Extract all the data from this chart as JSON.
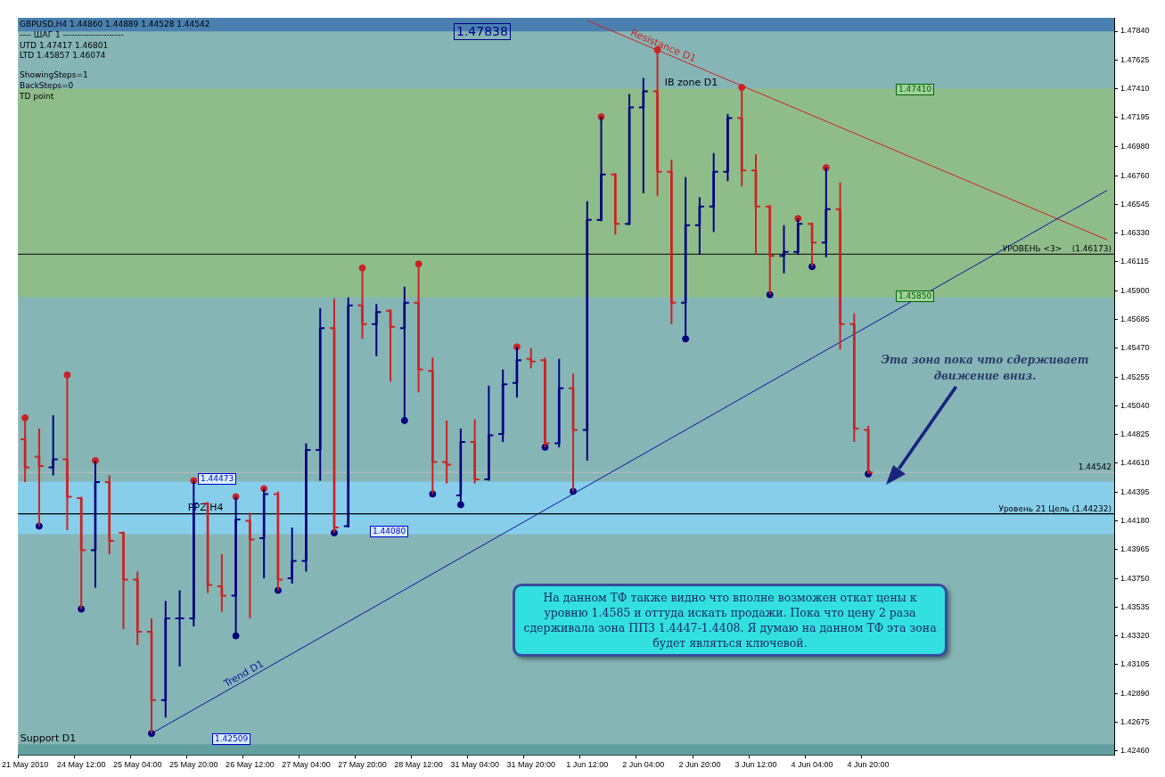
{
  "chart_data": {
    "type": "candlestick",
    "title": "GBPUSD,H4  1.44860 1.44889 1.44528 1.44542",
    "categories": [
      "21 May 2010",
      null,
      null,
      null,
      "24 May 12:00",
      null,
      null,
      null,
      "25 May 04:00",
      null,
      null,
      null,
      "25 May 20:00",
      null,
      null,
      null,
      "26 May 12:00",
      null,
      null,
      null,
      "27 May 04:00",
      null,
      null,
      null,
      "27 May 20:00",
      null,
      null,
      null,
      "28 May 12:00",
      null,
      null,
      null,
      "31 May 04:00",
      null,
      null,
      null,
      "31 May 20:00",
      null,
      null,
      null,
      "1 Jun 12:00",
      null,
      null,
      null,
      "2 Jun 04:00",
      null,
      null,
      null,
      "2 Jun 20:00",
      null,
      null,
      null,
      "3 Jun 12:00",
      null,
      null,
      null,
      "4 Jun 04:00",
      null,
      null,
      null,
      "4 Jun 20:00",
      null,
      null,
      null,
      null,
      null,
      null,
      null,
      null,
      null,
      null,
      null,
      null,
      null,
      null,
      null,
      null,
      null
    ],
    "ohlc": [
      [
        1.4479,
        1.4495,
        1.4447,
        1.4458
      ],
      [
        1.4466,
        1.4487,
        1.4414,
        1.4459
      ],
      [
        1.4458,
        1.4497,
        1.4452,
        1.4464
      ],
      [
        1.4464,
        1.4527,
        1.4411,
        1.4436
      ],
      [
        1.4435,
        1.4436,
        1.4352,
        1.4396
      ],
      [
        1.4396,
        1.4463,
        1.4368,
        1.4447
      ],
      [
        1.4447,
        1.4452,
        1.4393,
        1.4403
      ],
      [
        1.4409,
        1.441,
        1.4337,
        1.4374
      ],
      [
        1.4374,
        1.438,
        1.4325,
        1.4335
      ],
      [
        1.4335,
        1.4345,
        1.4259,
        1.4284
      ],
      [
        1.4284,
        1.4358,
        1.4271,
        1.4345
      ],
      [
        1.4345,
        1.4366,
        1.4309,
        1.4345
      ],
      [
        1.4345,
        1.4448,
        1.4339,
        1.4431
      ],
      [
        1.4431,
        1.4432,
        1.4364,
        1.437
      ],
      [
        1.4369,
        1.4393,
        1.435,
        1.4362
      ],
      [
        1.4362,
        1.4436,
        1.4332,
        1.4419
      ],
      [
        1.4418,
        1.4424,
        1.4345,
        1.4404
      ],
      [
        1.4405,
        1.4442,
        1.4375,
        1.4438
      ],
      [
        1.4438,
        1.444,
        1.4366,
        1.4374
      ],
      [
        1.4375,
        1.4413,
        1.4371,
        1.4388
      ],
      [
        1.4388,
        1.4476,
        1.438,
        1.4471
      ],
      [
        1.4471,
        1.4577,
        1.4448,
        1.4562
      ],
      [
        1.4562,
        1.4584,
        1.4409,
        1.4413
      ],
      [
        1.4414,
        1.4585,
        1.4413,
        1.4579
      ],
      [
        1.4579,
        1.4607,
        1.4554,
        1.4565
      ],
      [
        1.4565,
        1.458,
        1.4541,
        1.4574
      ],
      [
        1.4575,
        1.4576,
        1.4522,
        1.4563
      ],
      [
        1.4562,
        1.4593,
        1.4493,
        1.4581
      ],
      [
        1.4581,
        1.461,
        1.4514,
        1.4531
      ],
      [
        1.453,
        1.454,
        1.4438,
        1.4462
      ],
      [
        1.4462,
        1.4493,
        1.4446,
        1.446
      ],
      [
        1.4437,
        1.4487,
        1.443,
        1.4477
      ],
      [
        1.4477,
        1.4494,
        1.4446,
        1.4449
      ],
      [
        1.4449,
        1.4519,
        1.4448,
        1.4482
      ],
      [
        1.4483,
        1.4531,
        1.4477,
        1.452
      ],
      [
        1.4521,
        1.4548,
        1.451,
        1.4538
      ],
      [
        1.4539,
        1.4547,
        1.4532,
        1.4537
      ],
      [
        1.4538,
        1.454,
        1.4473,
        1.4476
      ],
      [
        1.4476,
        1.4539,
        1.4473,
        1.4517
      ],
      [
        1.4517,
        1.4528,
        1.444,
        1.4486
      ],
      [
        1.4486,
        1.4657,
        1.4463,
        1.4643
      ],
      [
        1.4643,
        1.472,
        1.4642,
        1.4677
      ],
      [
        1.4677,
        1.4678,
        1.4632,
        1.464
      ],
      [
        1.464,
        1.4737,
        1.4639,
        1.4727
      ],
      [
        1.4727,
        1.4749,
        1.4663,
        1.4739
      ],
      [
        1.4739,
        1.477,
        1.4661,
        1.4679
      ],
      [
        1.4679,
        1.4688,
        1.4565,
        1.4581
      ],
      [
        1.4581,
        1.4675,
        1.4554,
        1.4639
      ],
      [
        1.4639,
        1.466,
        1.4617,
        1.4653
      ],
      [
        1.4653,
        1.4693,
        1.4634,
        1.4679
      ],
      [
        1.4679,
        1.4722,
        1.4672,
        1.4719
      ],
      [
        1.4719,
        1.4742,
        1.4668,
        1.468
      ],
      [
        1.468,
        1.4692,
        1.4617,
        1.4653
      ],
      [
        1.4653,
        1.4654,
        1.4587,
        1.4616
      ],
      [
        1.4616,
        1.4639,
        1.4603,
        1.4619
      ],
      [
        1.4619,
        1.4644,
        1.4617,
        1.464
      ],
      [
        1.464,
        1.4641,
        1.4608,
        1.4626
      ],
      [
        1.4626,
        1.4682,
        1.4615,
        1.4651
      ],
      [
        1.4651,
        1.4671,
        1.4546,
        1.4565
      ],
      [
        1.4565,
        1.4573,
        1.4477,
        1.4487
      ],
      [
        1.4486,
        1.4489,
        1.4453,
        1.4454
      ],
      null,
      null,
      null,
      null,
      null,
      null,
      null,
      null,
      null,
      null,
      null,
      null,
      null,
      null,
      null,
      null,
      null
    ],
    "colors": [
      "#cc2222",
      "#cc2222",
      "#000080",
      "#cc2222",
      "#cc2222",
      "#000080",
      "#cc2222",
      "#cc2222",
      "#cc2222",
      "#cc2222",
      "#000080",
      "#000080",
      "#000080",
      "#cc2222",
      "#cc2222",
      "#000080",
      "#cc2222",
      "#000080",
      "#cc2222",
      "#000080",
      "#000080",
      "#000080",
      "#cc2222",
      "#000080",
      "#cc2222",
      "#000080",
      "#cc2222",
      "#000080",
      "#cc2222",
      "#cc2222",
      "#cc2222",
      "#000080",
      "#cc2222",
      "#000080",
      "#000080",
      "#000080",
      "#cc2222",
      "#cc2222",
      "#000080",
      "#cc2222",
      "#000080",
      "#000080",
      "#cc2222",
      "#000080",
      "#000080",
      "#cc2222",
      "#cc2222",
      "#000080",
      "#000080",
      "#000080",
      "#000080",
      "#cc2222",
      "#cc2222",
      "#cc2222",
      "#000080",
      "#000080",
      "#cc2222",
      "#000080",
      "#cc2222",
      "#cc2222",
      "#cc2222",
      null,
      null,
      null,
      null,
      null,
      null,
      null,
      null,
      null,
      null,
      null,
      null,
      null,
      null,
      null,
      null,
      null
    ],
    "series": [
      {
        "type": "line",
        "name": "Trend D1",
        "color": "#1010a0",
        "values": [
          null,
          null,
          null,
          null,
          null,
          null,
          null,
          null,
          null,
          1.4259,
          null,
          null,
          null,
          null,
          null,
          null,
          null,
          null,
          null,
          null,
          null,
          null,
          null,
          null,
          null,
          null,
          null,
          null,
          null,
          null,
          null,
          null,
          null,
          null,
          null,
          null,
          null,
          null,
          null,
          null,
          null,
          null,
          null,
          null,
          null,
          null,
          null,
          null,
          null,
          null,
          null,
          null,
          null,
          null,
          null,
          null,
          null,
          null,
          null,
          null,
          null,
          null,
          null,
          null,
          null,
          null,
          null,
          null,
          null,
          null,
          null,
          null,
          null,
          null,
          null,
          null,
          null,
          1.4665
        ]
      },
      {
        "type": "line",
        "name": "Resistance D1",
        "color": "#d02020",
        "values": [
          null,
          null,
          null,
          null,
          null,
          null,
          null,
          null,
          null,
          null,
          null,
          null,
          null,
          null,
          null,
          null,
          null,
          null,
          null,
          null,
          null,
          null,
          null,
          null,
          null,
          null,
          null,
          null,
          null,
          null,
          null,
          null,
          null,
          null,
          null,
          null,
          null,
          null,
          null,
          null,
          1.4792,
          null,
          null,
          null,
          null,
          null,
          null,
          null,
          null,
          null,
          null,
          null,
          null,
          null,
          null,
          null,
          null,
          null,
          null,
          null,
          null,
          null,
          null,
          null,
          null,
          null,
          null,
          null,
          null,
          null,
          null,
          null,
          null,
          null,
          null,
          null,
          null,
          1.4628
        ]
      },
      {
        "type": "scatter",
        "marker": "circle",
        "color": "#cc2222",
        "values": [
          1.4495,
          null,
          null,
          1.4527,
          null,
          1.4463,
          null,
          null,
          null,
          null,
          null,
          null,
          1.4448,
          null,
          null,
          1.4436,
          null,
          1.4442,
          null,
          null,
          null,
          null,
          null,
          null,
          1.4607,
          null,
          null,
          null,
          1.461,
          null,
          null,
          null,
          null,
          null,
          null,
          1.4548,
          null,
          null,
          null,
          null,
          null,
          1.472,
          null,
          null,
          null,
          1.477,
          null,
          null,
          null,
          null,
          null,
          1.4742,
          null,
          null,
          null,
          1.4644,
          null,
          1.4682,
          null,
          null,
          null,
          null,
          null,
          null,
          null,
          null,
          null,
          null,
          null,
          null,
          null,
          null,
          null,
          null,
          null,
          null,
          null,
          null
        ]
      },
      {
        "type": "scatter",
        "marker": "circle",
        "color": "#000080",
        "values": [
          null,
          1.4414,
          null,
          null,
          1.4352,
          null,
          null,
          null,
          null,
          1.4259,
          null,
          null,
          null,
          null,
          null,
          1.4332,
          null,
          null,
          1.4366,
          null,
          null,
          null,
          1.4409,
          null,
          null,
          null,
          null,
          1.4493,
          null,
          1.4438,
          null,
          1.443,
          null,
          null,
          null,
          null,
          null,
          1.4473,
          null,
          1.444,
          null,
          null,
          null,
          null,
          null,
          null,
          null,
          1.4554,
          null,
          null,
          null,
          null,
          null,
          1.4587,
          null,
          null,
          1.4608,
          null,
          null,
          null,
          1.4453,
          null,
          null,
          null,
          null,
          null,
          null,
          null,
          null,
          null,
          null,
          null,
          null,
          null,
          null,
          null,
          null,
          null
        ]
      }
    ],
    "ylim": [
      1.4243,
      1.4794
    ],
    "yticks": [
      {
        "value": 1.4784,
        "label": "1.47840"
      },
      {
        "value": 1.47625,
        "label": "1.47625"
      },
      {
        "value": 1.4741,
        "label": "1.47410"
      },
      {
        "value": 1.47195,
        "label": "1.47195"
      },
      {
        "value": 1.4698,
        "label": "1.46980"
      },
      {
        "value": 1.4676,
        "label": "1.46760"
      },
      {
        "value": 1.46545,
        "label": "1.46545"
      },
      {
        "value": 1.4633,
        "label": "1.46330"
      },
      {
        "value": 1.46115,
        "label": "1.46115"
      },
      {
        "value": 1.459,
        "label": "1.45900"
      },
      {
        "value": 1.45685,
        "label": "1.45685"
      },
      {
        "value": 1.4547,
        "label": "1.45470"
      },
      {
        "value": 1.45255,
        "label": "1.45255"
      },
      {
        "value": 1.4504,
        "label": "1.45040"
      },
      {
        "value": 1.44825,
        "label": "1.44825"
      },
      {
        "value": 1.4461,
        "label": "1.44610"
      },
      {
        "value": 1.44395,
        "label": "1.44395"
      },
      {
        "value": 1.4418,
        "label": "1.44180"
      },
      {
        "value": 1.43965,
        "label": "1.43965"
      },
      {
        "value": 1.4375,
        "label": "1.43750"
      },
      {
        "value": 1.43535,
        "label": "1.43535"
      },
      {
        "value": 1.4332,
        "label": "1.43320"
      },
      {
        "value": 1.43105,
        "label": "1.43105"
      },
      {
        "value": 1.4289,
        "label": "1.42890"
      },
      {
        "value": 1.42675,
        "label": "1.42675"
      },
      {
        "value": 1.4246,
        "label": "1.42460"
      }
    ],
    "bands": [
      {
        "axis": "y",
        "from": 1.4585,
        "to": 1.4741,
        "label": "IB zone D1",
        "color": "#8fbd8a"
      },
      {
        "axis": "y",
        "from": 1.4408,
        "to": 1.44473,
        "label": "PPZ H4",
        "color": "#87ceeb"
      },
      {
        "axis": "y",
        "from": 1.47838,
        "to": 1.4794,
        "color": "#4a80b0"
      },
      {
        "axis": "y",
        "from": 1.4243,
        "to": 1.42509,
        "label": "Support D1",
        "color": "#62a0a0"
      }
    ],
    "ref_lines": [
      {
        "axis": "y",
        "value": 1.46173,
        "label": "УРОВЕНЬ <3>    (1.46173)",
        "color": "#000000"
      },
      {
        "axis": "y",
        "value": 1.44232,
        "label": "Уровень 21 Цель (1.44232)",
        "color": "#000000"
      },
      {
        "axis": "y",
        "value": 1.44542,
        "label": "1.44542",
        "color": "#c0c0c0"
      }
    ],
    "annotations": [
      "---- ШАГ 1 ---------------------",
      "UTD  1.47417  1.46801",
      "LTD  1.45857  1.46074",
      "ShowingSteps=1",
      "BackSteps=0",
      "TD point",
      "1.47838",
      "1.47410",
      "1.45850",
      "1.44473",
      "1.44080",
      "1.42509",
      "Эта зона пока что сдерживает движение вниз.",
      "На данном ТФ также видно что вполне возможен откат цены к уровню 1.4585 и оттуда искать продажи. Пока что цену 2 раза сдерживала зона ППЗ 1.4447-1.4408. Я думаю на данном ТФ эта зона будет являться ключевой."
    ]
  }
}
